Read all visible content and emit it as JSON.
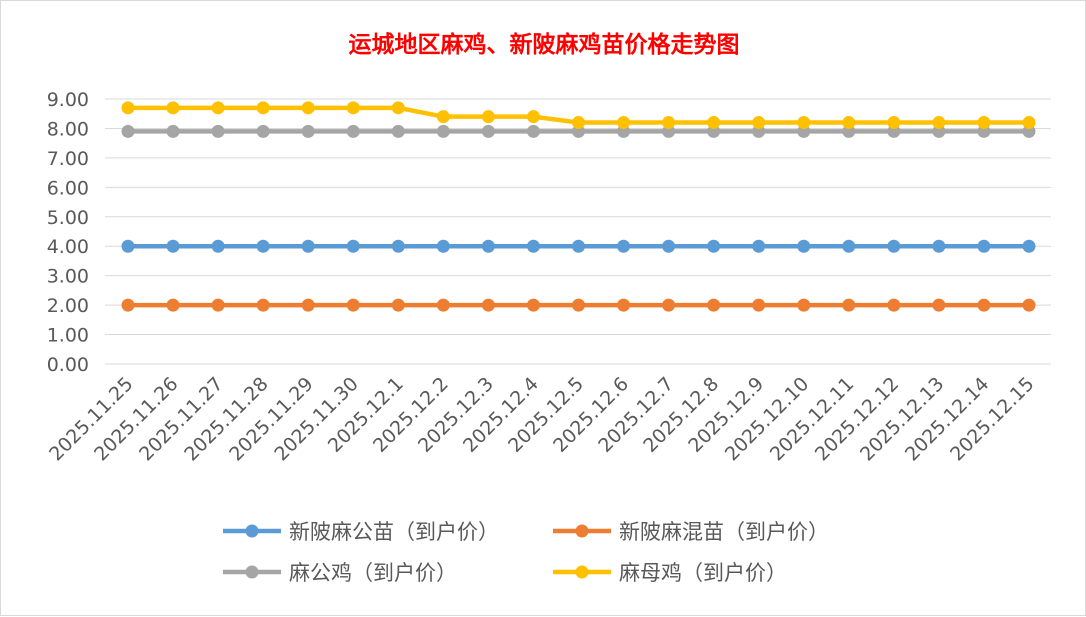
{
  "chart_data": {
    "type": "line",
    "title": "运城地区麻鸡、新陂麻鸡苗价格走势图",
    "xlabel": "",
    "ylabel": "",
    "ylim": [
      0,
      9
    ],
    "y_ticks": [
      "0.00",
      "1.00",
      "2.00",
      "3.00",
      "4.00",
      "5.00",
      "6.00",
      "7.00",
      "8.00",
      "9.00"
    ],
    "grid": true,
    "legend_position": "bottom",
    "categories": [
      "2025.11.25",
      "2025.11.26",
      "2025.11.27",
      "2025.11.28",
      "2025.11.29",
      "2025.11.30",
      "2025.12.1",
      "2025.12.2",
      "2025.12.3",
      "2025.12.4",
      "2025.12.5",
      "2025.12.6",
      "2025.12.7",
      "2025.12.8",
      "2025.12.9",
      "2025.12.10",
      "2025.12.11",
      "2025.12.12",
      "2025.12.13",
      "2025.12.14",
      "2025.12.15"
    ],
    "series": [
      {
        "name": "新陂麻公苗（到户价）",
        "color": "#5b9bd5",
        "values": [
          4,
          4,
          4,
          4,
          4,
          4,
          4,
          4,
          4,
          4,
          4,
          4,
          4,
          4,
          4,
          4,
          4,
          4,
          4,
          4,
          4
        ]
      },
      {
        "name": "新陂麻混苗（到户价）",
        "color": "#ed7d31",
        "values": [
          2,
          2,
          2,
          2,
          2,
          2,
          2,
          2,
          2,
          2,
          2,
          2,
          2,
          2,
          2,
          2,
          2,
          2,
          2,
          2,
          2
        ]
      },
      {
        "name": "麻公鸡（到户价）",
        "color": "#a5a5a5",
        "values": [
          7.9,
          7.9,
          7.9,
          7.9,
          7.9,
          7.9,
          7.9,
          7.9,
          7.9,
          7.9,
          7.9,
          7.9,
          7.9,
          7.9,
          7.9,
          7.9,
          7.9,
          7.9,
          7.9,
          7.9,
          7.9
        ]
      },
      {
        "name": "麻母鸡（到户价）",
        "color": "#ffc000",
        "values": [
          8.7,
          8.7,
          8.7,
          8.7,
          8.7,
          8.7,
          8.7,
          8.4,
          8.4,
          8.4,
          8.2,
          8.2,
          8.2,
          8.2,
          8.2,
          8.2,
          8.2,
          8.2,
          8.2,
          8.2,
          8.2
        ]
      }
    ]
  }
}
